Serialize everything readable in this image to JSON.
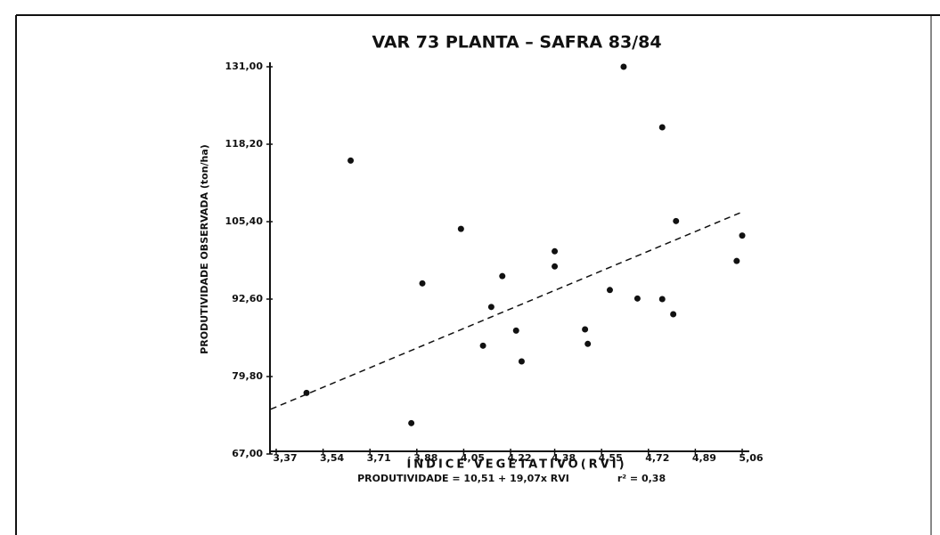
{
  "chart_data": {
    "type": "scatter",
    "title": "VAR 73 PLANTA – SAFRA 83/84",
    "x_label": "ÍNDICE VEGETATIVO(RVI)",
    "y_label": "PRODUTIVIDADE OBSERVADA (ton/ha)",
    "equation": "PRODUTIVIDADE = 10,51 + 19,07x RVI",
    "r_squared": "r² = 0,38",
    "trendline": {
      "intercept": 10.51,
      "slope": 19.07
    },
    "color": "#111111",
    "xlim": [
      3.37,
      5.06
    ],
    "ylim": [
      67,
      131
    ],
    "xticks": [
      {
        "value": 3.37,
        "label": "3,37"
      },
      {
        "value": 3.54,
        "label": "3,54"
      },
      {
        "value": 3.71,
        "label": "3,71"
      },
      {
        "value": 3.88,
        "label": "3,88"
      },
      {
        "value": 4.05,
        "label": "4,05"
      },
      {
        "value": 4.22,
        "label": "4,22"
      },
      {
        "value": 4.38,
        "label": "4,38"
      },
      {
        "value": 4.55,
        "label": "4,55"
      },
      {
        "value": 4.72,
        "label": "4,72"
      },
      {
        "value": 4.89,
        "label": "4,89"
      },
      {
        "value": 5.06,
        "label": "5,06"
      }
    ],
    "yticks": [
      {
        "value": 67,
        "label": "67,00"
      },
      {
        "value": 79.8,
        "label": "79,80"
      },
      {
        "value": 92.6,
        "label": "92,60"
      },
      {
        "value": 105.4,
        "label": "105,40"
      },
      {
        "value": 118.2,
        "label": "118,20"
      },
      {
        "value": 131,
        "label": "131,00"
      }
    ],
    "x": [
      3.48,
      3.64,
      3.86,
      3.9,
      4.04,
      4.12,
      4.15,
      4.19,
      4.24,
      4.26,
      4.38,
      4.38,
      4.49,
      4.5,
      4.58,
      4.63,
      4.68,
      4.77,
      4.77,
      4.81,
      4.82,
      5.04,
      5.06
    ],
    "values": [
      77.1,
      115.5,
      72.1,
      95.2,
      104.2,
      84.9,
      91.3,
      96.4,
      87.4,
      82.3,
      100.5,
      98.0,
      87.6,
      85.2,
      94.1,
      131.0,
      92.7,
      121.0,
      92.6,
      90.1,
      105.5,
      98.9,
      103.1
    ]
  }
}
